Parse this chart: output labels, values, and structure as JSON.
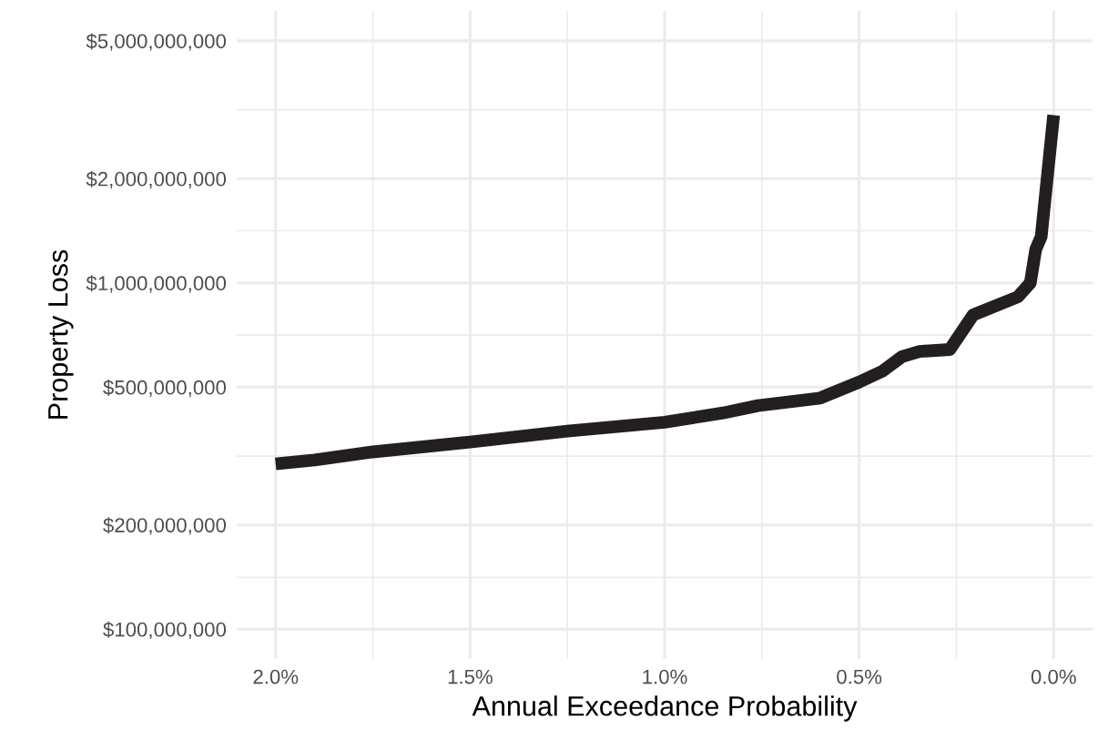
{
  "chart_data": {
    "type": "line",
    "xlabel": "Annual Exceedance Probability",
    "ylabel": "Property Loss",
    "log": "y",
    "grid": true,
    "marker": "none",
    "line_style": "solid",
    "xlim": [
      2.1,
      -0.1
    ],
    "xticks": [
      {
        "value": 2.0,
        "label": "2.0%"
      },
      {
        "value": 1.75,
        "label": null
      },
      {
        "value": 1.5,
        "label": "1.5%"
      },
      {
        "value": 1.25,
        "label": null
      },
      {
        "value": 1.0,
        "label": "1.0%"
      },
      {
        "value": 0.75,
        "label": null
      },
      {
        "value": 0.5,
        "label": "0.5%"
      },
      {
        "value": 0.25,
        "label": null
      },
      {
        "value": 0.0,
        "label": "0.0%"
      }
    ],
    "ylim": [
      82000000,
      6100000000
    ],
    "yticks": [
      {
        "value": 100000000,
        "label": "$100,000,000"
      },
      {
        "value": 141000000,
        "label": null
      },
      {
        "value": 200000000,
        "label": "$200,000,000"
      },
      {
        "value": 316000000,
        "label": null
      },
      {
        "value": 500000000,
        "label": "$500,000,000"
      },
      {
        "value": 707000000,
        "label": null
      },
      {
        "value": 1000000000,
        "label": "$1,000,000,000"
      },
      {
        "value": 1414000000,
        "label": null
      },
      {
        "value": 2000000000,
        "label": "$2,000,000,000"
      },
      {
        "value": 3162000000,
        "label": null
      },
      {
        "value": 5000000000,
        "label": "$5,000,000,000"
      }
    ],
    "series": [
      {
        "color": "#231f20",
        "x": [
          2.0,
          1.9,
          1.75,
          1.5,
          1.25,
          1.0,
          0.85,
          0.76,
          0.6,
          0.5,
          0.44,
          0.39,
          0.345,
          0.267,
          0.207,
          0.092,
          0.06,
          0.046,
          0.032,
          0.0
        ],
        "values": [
          300000000,
          308000000,
          325000000,
          347000000,
          373000000,
          396000000,
          421000000,
          442000000,
          465000000,
          517000000,
          556000000,
          612000000,
          634000000,
          642000000,
          808000000,
          911000000,
          1000000000,
          1250000000,
          1360000000,
          3050000000
        ]
      }
    ]
  }
}
